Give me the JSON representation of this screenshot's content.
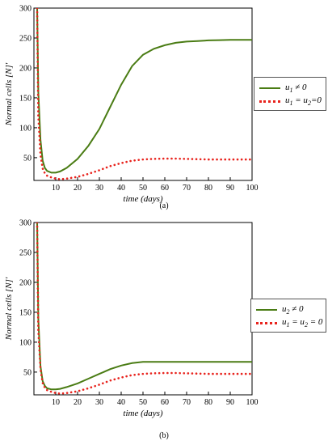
{
  "chart_data": [
    {
      "type": "line",
      "panel_label": "(a)",
      "xlabel": "time (days)",
      "ylabel": "Normal cells [N]'",
      "xlim": [
        0,
        100
      ],
      "ylim": [
        12,
        300
      ],
      "x_ticks": [
        "10",
        "20",
        "30",
        "40",
        "50",
        "60",
        "70",
        "80",
        "90",
        "100"
      ],
      "y_ticks": [
        "50",
        "100",
        "150",
        "200",
        "250",
        "300"
      ],
      "grid": false,
      "legend_position": "right",
      "series": [
        {
          "name": "u1 ≠ 0",
          "color": "#4a7c14",
          "style": "solid",
          "x": [
            1.5,
            2,
            3,
            4,
            5,
            6,
            8,
            10,
            12,
            15,
            20,
            25,
            30,
            35,
            40,
            45,
            50,
            55,
            60,
            65,
            70,
            75,
            80,
            85,
            90,
            95,
            100
          ],
          "y": [
            300,
            160,
            80,
            45,
            33,
            28,
            25,
            25,
            27,
            33,
            48,
            70,
            98,
            135,
            172,
            203,
            222,
            232,
            238,
            242,
            244,
            245,
            246,
            246.5,
            247,
            247,
            247
          ]
        },
        {
          "name": "u1 = u2=0",
          "color": "#e8231d",
          "style": "dotted",
          "x": [
            1.5,
            2,
            3,
            4,
            5,
            6,
            8,
            10,
            12,
            15,
            20,
            25,
            30,
            35,
            40,
            45,
            50,
            55,
            60,
            65,
            70,
            75,
            80,
            85,
            90,
            95,
            100
          ],
          "y": [
            300,
            120,
            55,
            32,
            24,
            20,
            17,
            15,
            14,
            15,
            18,
            23,
            29,
            36,
            41,
            45,
            47,
            48,
            48.5,
            48.5,
            48,
            47.5,
            47,
            47,
            47,
            47,
            47
          ]
        }
      ],
      "legend": [
        {
          "label": "u1 ≠ 0",
          "base": "u",
          "sub": "1",
          "rest": " ≠ 0"
        },
        {
          "label": "u1 = u2=0",
          "base": "u",
          "sub": "1",
          "rest": " = u",
          "sub2": "2",
          "rest2": "=0"
        }
      ]
    },
    {
      "type": "line",
      "panel_label": "(b)",
      "xlabel": "time (days)",
      "ylabel": "Normal cells [N]'",
      "xlim": [
        0,
        100
      ],
      "ylim": [
        12,
        300
      ],
      "x_ticks": [
        "10",
        "20",
        "30",
        "40",
        "50",
        "60",
        "70",
        "80",
        "90",
        "100"
      ],
      "y_ticks": [
        "50",
        "100",
        "150",
        "200",
        "250",
        "300"
      ],
      "grid": false,
      "legend_position": "right",
      "series": [
        {
          "name": "u2 ≠ 0",
          "color": "#4a7c14",
          "style": "solid",
          "x": [
            1.5,
            2,
            3,
            4,
            5,
            6,
            8,
            10,
            12,
            15,
            20,
            25,
            30,
            35,
            40,
            45,
            50,
            55,
            60,
            65,
            70,
            75,
            80,
            85,
            90,
            95,
            100
          ],
          "y": [
            300,
            140,
            60,
            35,
            27,
            23,
            21,
            21,
            22,
            25,
            31,
            39,
            47,
            55,
            61,
            65,
            67,
            67,
            67,
            67,
            67,
            67,
            67,
            67,
            67,
            67,
            67
          ]
        },
        {
          "name": "u1 = u2 = 0",
          "color": "#e8231d",
          "style": "dotted",
          "x": [
            1.5,
            2,
            3,
            4,
            5,
            6,
            8,
            10,
            12,
            15,
            20,
            25,
            30,
            35,
            40,
            45,
            50,
            55,
            60,
            65,
            70,
            75,
            80,
            85,
            90,
            95,
            100
          ],
          "y": [
            300,
            120,
            55,
            32,
            24,
            20,
            17,
            15,
            14,
            15,
            18,
            23,
            29,
            36,
            41,
            45,
            47,
            48,
            48.5,
            48.5,
            48,
            47.5,
            47,
            47,
            47,
            47,
            47
          ]
        }
      ],
      "legend": [
        {
          "label": "u2 ≠ 0",
          "base": "u",
          "sub": "2",
          "rest": " ≠ 0"
        },
        {
          "label": "u1 = u2 = 0",
          "base": "u",
          "sub": "1",
          "rest": " = u",
          "sub2": "2",
          "rest2": " = 0"
        }
      ]
    }
  ]
}
